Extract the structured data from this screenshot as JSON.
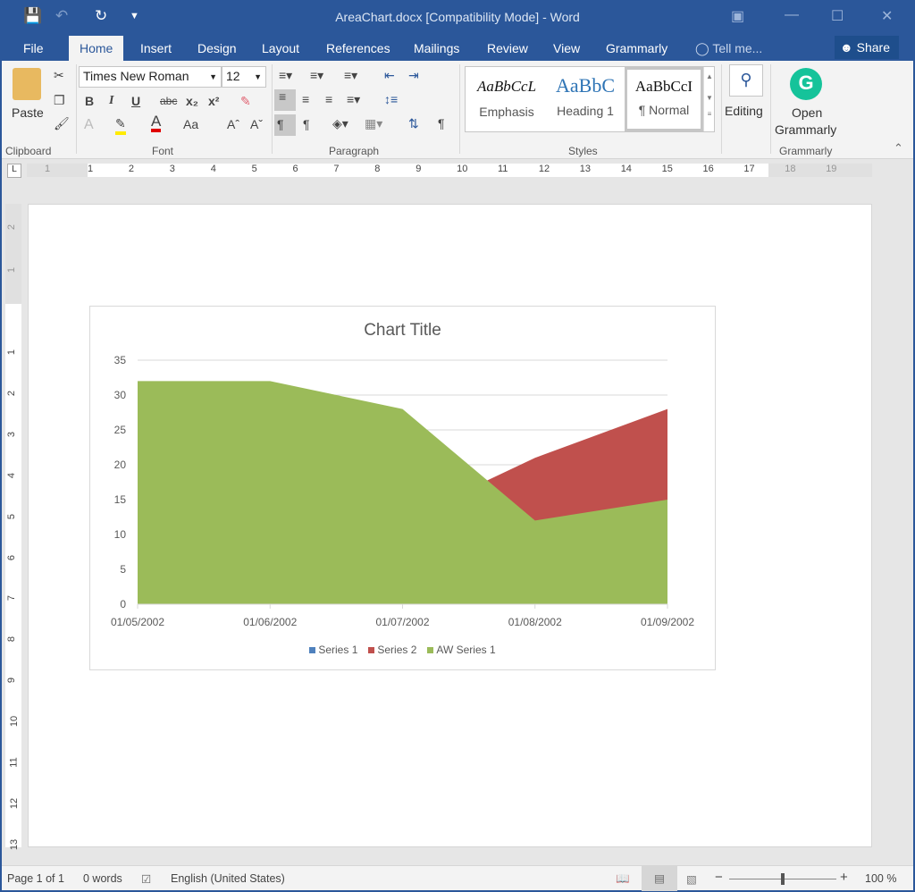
{
  "window": {
    "title": "AreaChart.docx [Compatibility Mode] - Word"
  },
  "tabs": [
    {
      "label": "File"
    },
    {
      "label": "Home"
    },
    {
      "label": "Insert"
    },
    {
      "label": "Design"
    },
    {
      "label": "Layout"
    },
    {
      "label": "References"
    },
    {
      "label": "Mailings"
    },
    {
      "label": "Review"
    },
    {
      "label": "View"
    },
    {
      "label": "Grammarly"
    }
  ],
  "tell_me": "Tell me...",
  "share_label": "Share",
  "ribbon": {
    "clipboard": {
      "paste": "Paste",
      "group": "Clipboard"
    },
    "font": {
      "name": "Times New Roman",
      "size": "12",
      "group": "Font",
      "bold": "B",
      "italic": "I",
      "underline": "U",
      "strike": "abc",
      "change_case": "Aa"
    },
    "paragraph": {
      "group": "Paragraph"
    },
    "styles": {
      "group": "Styles",
      "items": [
        {
          "preview": "AaBbCcL",
          "label": "Emphasis"
        },
        {
          "preview": "AaBbC",
          "label": "Heading 1"
        },
        {
          "preview": "AaBbCcI",
          "label": "¶ Normal"
        }
      ]
    },
    "editing": {
      "label": "Editing"
    },
    "grammarly": {
      "open": "Open",
      "name": "Grammarly",
      "group": "Grammarly"
    }
  },
  "ruler": {
    "horizontal": [
      "1",
      "1",
      "2",
      "3",
      "4",
      "5",
      "6",
      "7",
      "8",
      "9",
      "10",
      "11",
      "12",
      "13",
      "14",
      "15",
      "16",
      "17",
      "18",
      "19"
    ],
    "vertical": [
      "2",
      "1",
      "1",
      "2",
      "3",
      "4",
      "5",
      "6",
      "7",
      "8",
      "9",
      "10",
      "11",
      "12",
      "13"
    ]
  },
  "chart_data": {
    "type": "area",
    "title": "Chart Title",
    "categories": [
      "01/05/2002",
      "01/06/2002",
      "01/07/2002",
      "01/08/2002",
      "01/09/2002"
    ],
    "ylim": [
      0,
      35
    ],
    "yticks": [
      "0",
      "5",
      "10",
      "15",
      "20",
      "25",
      "30",
      "35"
    ],
    "grid": true,
    "legend": "bottom",
    "series": [
      {
        "name": "Series 1",
        "color": "#4f81bd",
        "values": [
          null,
          null,
          null,
          null,
          null
        ]
      },
      {
        "name": "Series 2",
        "color": "#c0504d",
        "values": [
          null,
          null,
          12,
          21,
          28
        ]
      },
      {
        "name": "AW Series 1",
        "color": "#9bbb59",
        "values": [
          32,
          32,
          28,
          12,
          15
        ]
      }
    ]
  },
  "status": {
    "page": "Page 1 of 1",
    "words": "0 words",
    "language": "English (United States)",
    "zoom": "100 %",
    "zoom_level": 100
  }
}
